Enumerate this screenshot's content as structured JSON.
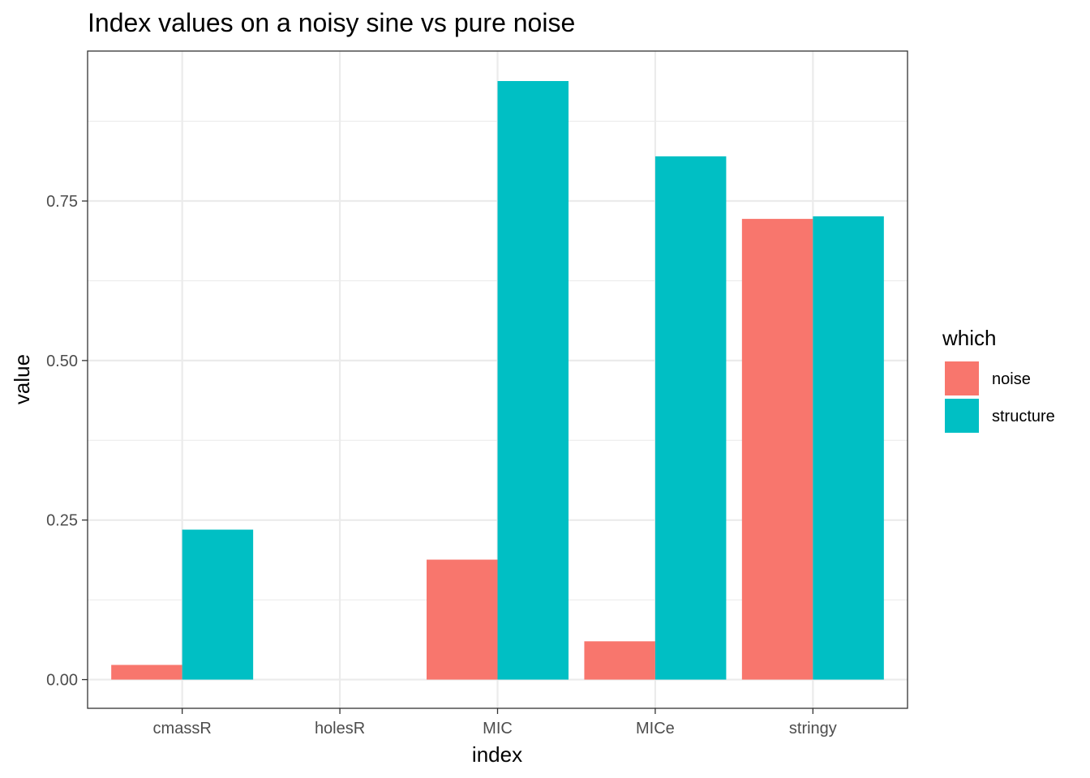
{
  "chart_data": {
    "type": "bar",
    "title": "Index values on a noisy sine vs pure noise",
    "xlabel": "index",
    "ylabel": "value",
    "categories": [
      "cmassR",
      "holesR",
      "MIC",
      "MICe",
      "stringy"
    ],
    "series": [
      {
        "name": "noise",
        "color": "#F8766D",
        "values": [
          0.023,
          0.0,
          0.188,
          0.06,
          0.722
        ]
      },
      {
        "name": "structure",
        "color": "#00BFC4",
        "values": [
          0.235,
          0.0,
          0.938,
          0.82,
          0.726
        ]
      }
    ],
    "ylim": [
      -0.045,
      0.985
    ],
    "yticks": [
      0.0,
      0.25,
      0.5,
      0.75
    ],
    "ytick_labels": [
      "0.00",
      "0.25",
      "0.50",
      "0.75"
    ],
    "grid": true,
    "legend": {
      "title": "which",
      "position": "right"
    }
  }
}
